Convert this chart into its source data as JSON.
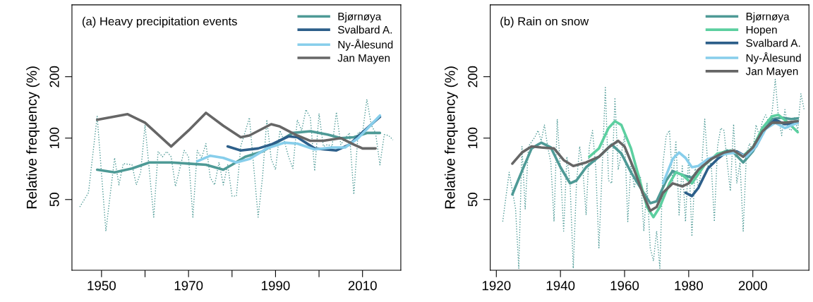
{
  "chart_data": [
    {
      "type": "line",
      "title": "(a) Heavy precipitation events",
      "ylabel": "Relative frequency (%)",
      "log": "y",
      "ylim": [
        22.5,
        450
      ],
      "yticks": [
        50,
        100,
        200
      ],
      "xlim": [
        1943.2,
        2018.8
      ],
      "xticks": [
        1950,
        {
          "value": 1960,
          "label": null
        },
        1970,
        {
          "value": 1980,
          "label": null
        },
        1990,
        {
          "value": 2000,
          "label": null
        },
        2010
      ],
      "grid": false,
      "legend": "top right",
      "series": [
        {
          "color": "#4e9a96",
          "line_style": "dotted",
          "x": [
            1945,
            1947,
            1949,
            1951,
            1953,
            1954,
            1955,
            1957,
            1958,
            1959,
            1960,
            1962,
            1963,
            1964,
            1965,
            1966,
            1967,
            1969,
            1970,
            1971,
            1972,
            1973,
            1974,
            1975,
            1976,
            1977,
            1978,
            1979,
            1980,
            1981,
            1982,
            1984,
            1985,
            1986,
            1987,
            1988,
            1989,
            1990,
            1991,
            1992,
            1993,
            1994,
            1995,
            1996,
            1997,
            1998,
            1999,
            2000,
            2001,
            2002,
            2003,
            2004,
            2005,
            2006,
            2007,
            2008,
            2009,
            2010,
            2011,
            2012,
            2013,
            2014,
            2015,
            2016,
            2017
          ],
          "values": [
            46,
            54,
            128,
            35,
            80,
            59,
            75,
            74,
            59,
            68,
            116,
            41,
            86,
            81,
            86,
            81,
            58,
            87,
            81,
            41,
            87,
            80,
            94,
            64,
            59,
            76,
            59,
            74,
            52,
            52,
            91,
            126,
            72,
            41,
            64,
            123,
            79,
            70,
            109,
            97,
            81,
            71,
            123,
            109,
            138,
            126,
            69,
            132,
            91,
            93,
            91,
            134,
            93,
            100,
            106,
            53,
            107,
            106,
            155,
            116,
            106,
            74,
            104,
            103,
            98
          ]
        },
        {
          "name": "Bjørnøya",
          "color": "#4e9a96",
          "x": [
            1949,
            1953,
            1957,
            1961,
            1966,
            1970,
            1974,
            1978,
            1980,
            1983,
            1987,
            1991,
            1994,
            1998,
            2002,
            2005,
            2008,
            2011,
            2014
          ],
          "values": [
            70,
            68,
            71,
            76,
            76,
            75,
            74,
            70,
            74,
            81,
            86,
            97,
            106,
            108,
            104,
            100,
            101,
            106,
            106
          ]
        },
        {
          "name": "Svalbard A.",
          "color": "#2d5f8a",
          "x": [
            1979,
            1982,
            1986,
            1989,
            1993,
            1995,
            1999,
            2004,
            2007,
            2010,
            2014
          ],
          "values": [
            91,
            87,
            89,
            93,
            102,
            101,
            89,
            87,
            93,
            107,
            127
          ]
        },
        {
          "name": "Ny-Ålesund",
          "color": "#87ceeb",
          "x": [
            1972,
            1975,
            1978,
            1981,
            1984,
            1988,
            1992,
            1995,
            1999,
            2003,
            2006,
            2009,
            2014
          ],
          "values": [
            77,
            82,
            80,
            76,
            79,
            89,
            95,
            94,
            88,
            90,
            90,
            100,
            129
          ]
        },
        {
          "name": "Jan Mayen",
          "color": "#666666",
          "x": [
            1949,
            1956,
            1960,
            1966,
            1970,
            1974,
            1978,
            1982,
            1984,
            1989,
            1991,
            1995,
            1998,
            2001,
            2005,
            2008,
            2010,
            2013
          ],
          "values": [
            123,
            131,
            119,
            91,
            109,
            133,
            115,
            101,
            103,
            117,
            114,
            103,
            97,
            97,
            100,
            93,
            89,
            89
          ]
        }
      ]
    },
    {
      "type": "line",
      "title": "(b) Rain on snow",
      "ylabel": "Relative frequency (%)",
      "log": "y",
      "ylim": [
        22.5,
        450
      ],
      "yticks": [
        50,
        100,
        200
      ],
      "xlim": [
        1918.1,
        2017.5
      ],
      "xticks": [
        1920,
        1940,
        1960,
        1980,
        2000
      ],
      "grid": false,
      "legend": "top right",
      "series": [
        {
          "color": "#4e9a96",
          "line_style": "dotted",
          "x": [
            1922,
            1924,
            1926,
            1927,
            1928,
            1929,
            1930,
            1932,
            1933,
            1934,
            1935,
            1936,
            1937,
            1938,
            1939,
            1940,
            1941,
            1942,
            1943,
            1944,
            1945,
            1946,
            1947,
            1948,
            1949,
            1950,
            1951,
            1952,
            1953,
            1954,
            1955,
            1956,
            1957,
            1958,
            1959,
            1960,
            1961,
            1962,
            1963,
            1964,
            1965,
            1966,
            1967,
            1968,
            1969,
            1970,
            1971,
            1972,
            1973,
            1974,
            1975,
            1976,
            1977,
            1978,
            1979,
            1980,
            1981,
            1982,
            1983,
            1984,
            1985,
            1986,
            1987,
            1988,
            1989,
            1990,
            1991,
            1992,
            1993,
            1994,
            1995,
            1996,
            1997,
            1998,
            1999,
            2000,
            2001,
            2002,
            2003,
            2004,
            2005,
            2006,
            2007,
            2008,
            2009,
            2010,
            2011,
            2012,
            2013,
            2014,
            2015,
            2016
          ],
          "values": [
            39,
            68,
            45,
            23,
            91,
            45,
            91,
            101,
            109,
            97,
            116,
            91,
            76,
            39,
            124,
            70,
            35,
            81,
            60,
            23,
            60,
            91,
            70,
            42,
            91,
            109,
            72,
            29,
            70,
            177,
            62,
            60,
            158,
            70,
            84,
            103,
            39,
            76,
            57,
            68,
            64,
            35,
            60,
            29,
            25,
            35,
            23,
            76,
            103,
            109,
            60,
            97,
            42,
            74,
            39,
            84,
            33,
            72,
            57,
            70,
            124,
            72,
            76,
            39,
            91,
            112,
            109,
            76,
            55,
            117,
            60,
            76,
            35,
            84,
            94,
            86,
            116,
            103,
            121,
            130,
            119,
            134,
            194,
            126,
            103,
            138,
            112,
            109,
            126,
            109,
            165,
            138
          ]
        },
        {
          "name": "Bjørnøya",
          "color": "#4e9a96",
          "x": [
            1925,
            1928,
            1931,
            1934,
            1937,
            1940,
            1943,
            1945,
            1948,
            1952,
            1956,
            1959,
            1962,
            1965,
            1968,
            1970,
            1973,
            1975,
            1978,
            1981,
            1984,
            1988,
            1992,
            1994,
            1997,
            2000,
            2003,
            2006,
            2009,
            2012,
            2014
          ],
          "values": [
            53,
            69,
            89,
            95,
            90,
            72,
            60,
            62,
            72,
            81,
            93,
            84,
            68,
            57,
            48,
            49,
            62,
            69,
            66,
            64,
            72,
            81,
            87,
            85,
            76,
            86,
            106,
            124,
            126,
            124,
            125
          ]
        },
        {
          "name": "Hopen",
          "color": "#5ccfa0",
          "x": [
            1949,
            1952,
            1955,
            1957,
            1959,
            1962,
            1965,
            1967,
            1969,
            1971,
            1974,
            1976,
            1978,
            1981,
            1985,
            1989,
            1993,
            1997,
            2000,
            2003,
            2006,
            2008,
            2011,
            2014
          ],
          "values": [
            81,
            89,
            112,
            121,
            116,
            89,
            60,
            46,
            41,
            46,
            60,
            68,
            66,
            60,
            74,
            84,
            87,
            82,
            90,
            112,
            128,
            130,
            119,
            107
          ]
        },
        {
          "name": "Svalbard A.",
          "color": "#2d5f8a",
          "x": [
            1979,
            1981,
            1983,
            1986,
            1989,
            1992,
            1995,
            1998,
            2001,
            2004,
            2007,
            2010,
            2014
          ],
          "values": [
            54,
            52,
            57,
            71,
            79,
            86,
            86,
            81,
            91,
            112,
            123,
            117,
            119
          ]
        },
        {
          "name": "Ny-Ålesund",
          "color": "#87ceeb",
          "x": [
            1972,
            1975,
            1977,
            1979,
            1981,
            1983,
            1986,
            1989,
            1992,
            1995,
            1998,
            2001,
            2004,
            2007,
            2010,
            2014
          ],
          "values": [
            60,
            79,
            85,
            80,
            72,
            73,
            79,
            82,
            84,
            85,
            81,
            91,
            111,
            119,
            112,
            119
          ]
        },
        {
          "name": "Jan Mayen",
          "color": "#666666",
          "x": [
            1925,
            1928,
            1931,
            1934,
            1938,
            1941,
            1944,
            1948,
            1952,
            1955,
            1958,
            1960,
            1963,
            1966,
            1968,
            1970,
            1972,
            1975,
            1978,
            1980,
            1983,
            1987,
            1991,
            1994,
            1997,
            2000,
            2003,
            2006,
            2010,
            2014
          ],
          "values": [
            75,
            85,
            91,
            90,
            89,
            78,
            73,
            76,
            81,
            90,
            97,
            91,
            70,
            52,
            44,
            46,
            54,
            60,
            58,
            60,
            70,
            79,
            85,
            87,
            81,
            90,
            108,
            119,
            119,
            121
          ]
        }
      ]
    }
  ]
}
